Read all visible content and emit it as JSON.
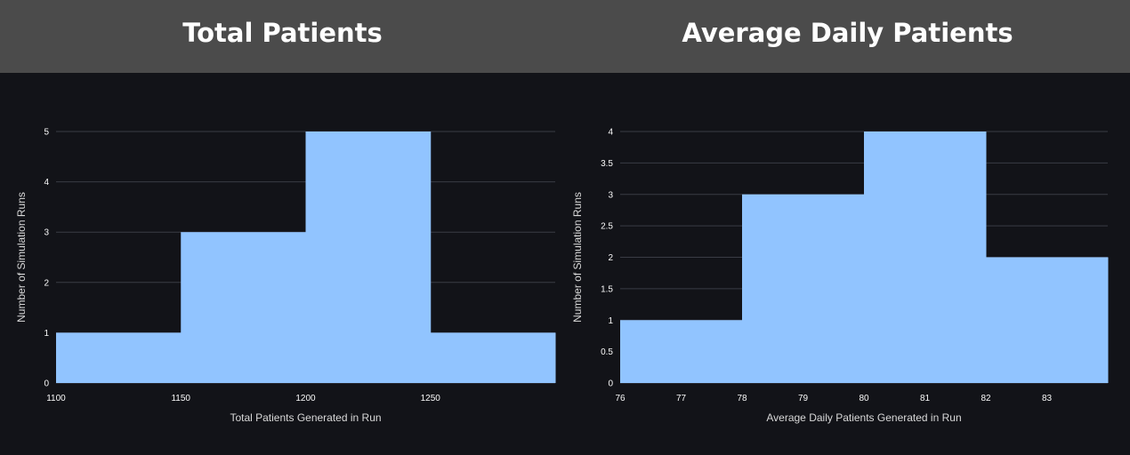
{
  "header": {
    "left_title": "Total Patients",
    "right_title": "Average Daily Patients"
  },
  "colors": {
    "bar": "#91c4ff",
    "grid": "#3a3c44",
    "background": "#121318",
    "title_bg": "#4b4b4b"
  },
  "chart_data": [
    {
      "type": "bar",
      "subtype": "histogram",
      "bin_edges": [
        1100,
        1150,
        1200,
        1250,
        1300
      ],
      "values": [
        1,
        3,
        5,
        1
      ],
      "xlabel": "Total Patients Generated in Run",
      "ylabel": "Number of Simulation Runs",
      "xlim": [
        1100,
        1300
      ],
      "ylim": [
        0,
        5
      ],
      "xticks": [
        1100,
        1150,
        1200,
        1250
      ],
      "xtick_labels": [
        "1100",
        "1150",
        "1200",
        "1250"
      ],
      "yticks": [
        0,
        1,
        2,
        3,
        4,
        5
      ],
      "ytick_labels": [
        "0",
        "1",
        "2",
        "3",
        "4",
        "5"
      ],
      "grid": true,
      "legend": false
    },
    {
      "type": "bar",
      "subtype": "histogram",
      "bin_edges": [
        76,
        78,
        80,
        82,
        84
      ],
      "values": [
        1,
        3,
        4,
        2
      ],
      "xlabel": "Average Daily Patients Generated in Run",
      "ylabel": "Number of Simulation Runs",
      "xlim": [
        76,
        84
      ],
      "ylim": [
        0,
        4
      ],
      "xticks": [
        76,
        77,
        78,
        79,
        80,
        81,
        82,
        83
      ],
      "xtick_labels": [
        "76",
        "77",
        "78",
        "79",
        "80",
        "81",
        "82",
        "83"
      ],
      "yticks": [
        0,
        0.5,
        1,
        1.5,
        2,
        2.5,
        3,
        3.5,
        4
      ],
      "ytick_labels": [
        "0",
        "0.5",
        "1",
        "1.5",
        "2",
        "2.5",
        "3",
        "3.5",
        "4"
      ],
      "grid": true,
      "legend": false
    }
  ]
}
